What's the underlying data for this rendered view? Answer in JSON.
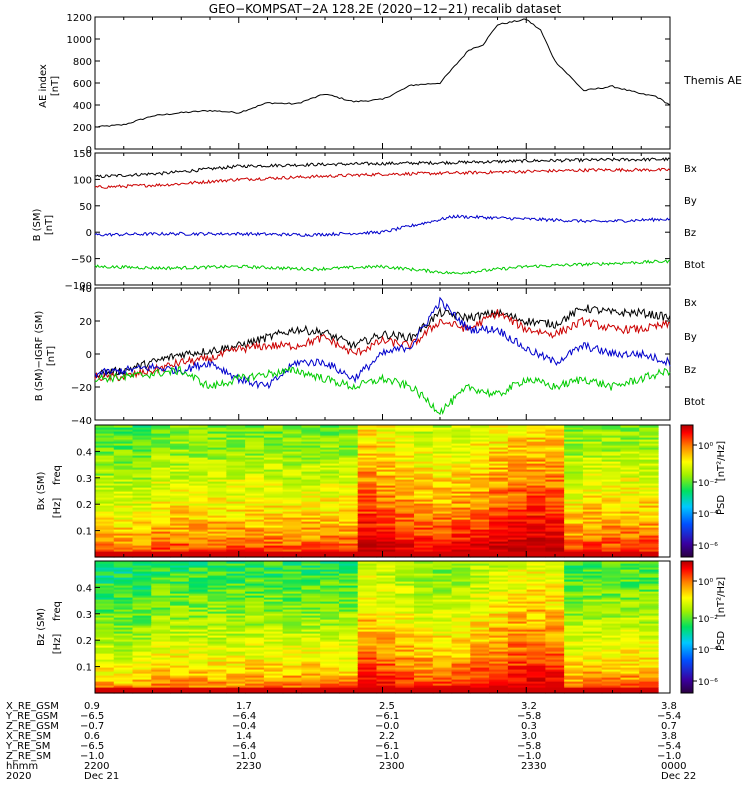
{
  "title": "GEO−KOMPSAT−2A 128.2E (2020−12−21) recalib dataset",
  "panels": {
    "ae": {
      "ylabel": "AE index",
      "yunit": "[nT]",
      "side_label": "Themis AE",
      "ylim": [
        0,
        1200
      ],
      "ticks": [
        "0",
        "200",
        "400",
        "600",
        "800",
        "1000",
        "1200"
      ]
    },
    "bsm": {
      "ylabel": "B (SM)",
      "yunit": "[nT]",
      "ylim": [
        -100,
        150
      ],
      "ticks": [
        "−100",
        "−50",
        "0",
        "50",
        "100",
        "150"
      ],
      "legend": [
        {
          "name": "Bx",
          "color": "#0000cc"
        },
        {
          "name": "By",
          "color": "#00cc00"
        },
        {
          "name": "Bz",
          "color": "#cc0000"
        },
        {
          "name": "Btot",
          "color": "#000000"
        }
      ]
    },
    "bigrf": {
      "ylabel": "B (SM)−IGRF (SM)",
      "yunit": "[nT]",
      "ylim": [
        -40,
        40
      ],
      "ticks": [
        "−40",
        "−20",
        "0",
        "20",
        "40"
      ],
      "legend": [
        {
          "name": "Bx",
          "color": "#0000cc"
        },
        {
          "name": "By",
          "color": "#00cc00"
        },
        {
          "name": "Bz",
          "color": "#cc0000"
        },
        {
          "name": "Btot",
          "color": "#000000"
        }
      ]
    },
    "spec1": {
      "ylabel": "Bx (SM)",
      "flabel": "freq",
      "funit": "[Hz]",
      "ticks": [
        "0.1",
        "0.2",
        "0.3",
        "0.4"
      ]
    },
    "spec2": {
      "ylabel": "Bz (SM)",
      "flabel": "freq",
      "funit": "[Hz]",
      "ticks": [
        "0.1",
        "0.2",
        "0.3",
        "0.4"
      ]
    },
    "colorbar": {
      "label": "PSD",
      "unit": "[nT²/Hz]",
      "ticks": [
        "10⁰",
        "10⁻²",
        "10⁻⁴",
        "10⁻⁶"
      ]
    }
  },
  "footer": {
    "row_labels": [
      "X_RE_GSM",
      "Y_RE_GSM",
      "Z_RE_GSM",
      "X_RE_SM",
      "Y_RE_SM",
      "Z_RE_SM",
      "hhmm",
      "2020"
    ],
    "columns": [
      [
        "0.9",
        "−6.5",
        "−0.7",
        "0.6",
        "−6.5",
        "−1.0",
        "2200",
        "Dec 21"
      ],
      [
        "1.7",
        "−6.4",
        "−0.4",
        "1.4",
        "−6.4",
        "−1.0",
        "2230",
        ""
      ],
      [
        "2.5",
        "−6.1",
        "−0.0",
        "2.2",
        "−6.1",
        "−1.0",
        "2300",
        ""
      ],
      [
        "3.2",
        "−5.8",
        "0.3",
        "3.0",
        "−5.8",
        "−1.0",
        "2330",
        ""
      ],
      [
        "3.8",
        "−5.4",
        "0.7",
        "3.8",
        "−5.4",
        "−1.0",
        "0000",
        "Dec 22"
      ]
    ]
  },
  "chart_data": [
    {
      "type": "line",
      "panel": "ae",
      "title": "Themis AE",
      "x_hours": [
        0,
        0.1,
        0.2,
        0.3,
        0.4,
        0.5,
        0.6,
        0.7,
        0.8,
        0.9,
        1.0,
        1.1,
        1.2,
        1.3,
        1.35,
        1.4,
        1.5,
        1.55,
        1.6,
        1.7,
        1.8,
        1.9,
        1.95,
        2.0
      ],
      "y": [
        200,
        220,
        300,
        330,
        350,
        330,
        420,
        410,
        500,
        430,
        450,
        580,
        600,
        900,
        950,
        1130,
        1180,
        1080,
        800,
        530,
        570,
        500,
        480,
        400
      ],
      "ylim": [
        0,
        1200
      ]
    },
    {
      "type": "line",
      "panel": "bsm",
      "x_hours": [
        0,
        0.25,
        0.5,
        0.75,
        1.0,
        1.25,
        1.5,
        1.75,
        2.0
      ],
      "series": [
        {
          "name": "Btot",
          "values": [
            105,
            112,
            125,
            128,
            130,
            132,
            135,
            137,
            138
          ]
        },
        {
          "name": "Bz",
          "values": [
            85,
            90,
            100,
            105,
            110,
            112,
            115,
            118,
            118
          ]
        },
        {
          "name": "Bx",
          "values": [
            -5,
            -3,
            -3,
            -5,
            0,
            30,
            25,
            20,
            25
          ]
        },
        {
          "name": "By",
          "values": [
            -65,
            -68,
            -65,
            -70,
            -65,
            -78,
            -65,
            -60,
            -55
          ]
        }
      ],
      "ylim": [
        -100,
        150
      ]
    },
    {
      "type": "line",
      "panel": "bigrf",
      "x_hours": [
        0,
        0.1,
        0.2,
        0.3,
        0.4,
        0.5,
        0.6,
        0.7,
        0.8,
        0.9,
        1.0,
        1.1,
        1.2,
        1.3,
        1.4,
        1.5,
        1.6,
        1.7,
        1.8,
        1.9,
        2.0
      ],
      "series": [
        {
          "name": "Btot",
          "values": [
            -12,
            -10,
            -5,
            0,
            2,
            5,
            10,
            15,
            13,
            5,
            12,
            10,
            25,
            22,
            25,
            20,
            18,
            28,
            25,
            25,
            22
          ]
        },
        {
          "name": "Bz",
          "values": [
            -14,
            -14,
            -10,
            -5,
            -3,
            3,
            5,
            5,
            10,
            0,
            8,
            5,
            20,
            15,
            25,
            15,
            12,
            20,
            15,
            15,
            18
          ]
        },
        {
          "name": "Bx",
          "values": [
            -12,
            -10,
            -8,
            -10,
            -5,
            -15,
            -20,
            -5,
            -5,
            -15,
            0,
            5,
            32,
            15,
            15,
            3,
            -5,
            5,
            0,
            0,
            -5
          ]
        },
        {
          "name": "By",
          "values": [
            -15,
            -14,
            -12,
            -10,
            -20,
            -15,
            -12,
            -10,
            -15,
            -20,
            -15,
            -20,
            -35,
            -20,
            -25,
            -15,
            -20,
            -15,
            -20,
            -15,
            -10
          ]
        }
      ],
      "ylim": [
        -40,
        40
      ]
    },
    {
      "type": "heatmap",
      "panel": "spec1",
      "title": "Bx (SM) PSD",
      "ylabel": "freq [Hz]",
      "x_hours": [
        0,
        2
      ],
      "ylim": [
        0,
        0.5
      ],
      "colorbar": "PSD [nT²/Hz]",
      "description_levels": "low frequencies dark red, higher frequencies green/cyan; enhanced power 1.0–1.6 h"
    },
    {
      "type": "heatmap",
      "panel": "spec2",
      "title": "Bz (SM) PSD",
      "ylabel": "freq [Hz]",
      "x_hours": [
        0,
        2
      ],
      "ylim": [
        0,
        0.5
      ],
      "colorbar": "PSD [nT²/Hz]",
      "description_levels": "low frequencies dark red, higher frequencies cyan/green; enhanced power 1.0–1.6 h"
    }
  ]
}
